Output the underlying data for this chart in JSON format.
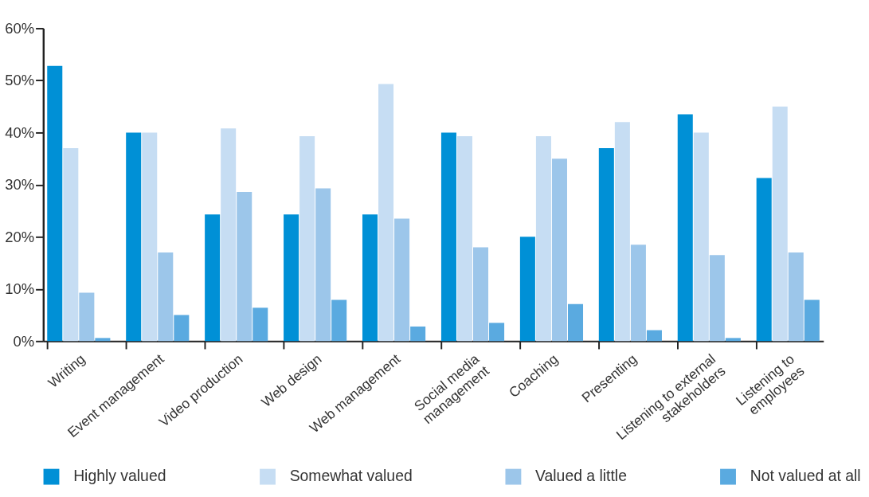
{
  "chart_data": {
    "type": "bar",
    "categories": [
      "Writing",
      "Event management",
      "Video production",
      "Web design",
      "Web management",
      "Social media\nmanagement",
      "Coaching",
      "Presenting",
      "Listening to external\nstakeholders",
      "Listening to\nemployees"
    ],
    "series": [
      {
        "name": "Highly valued",
        "color": "#0090d6",
        "values": [
          52.8,
          40,
          24.3,
          24.3,
          24.3,
          40,
          20,
          37,
          43.5,
          31.3
        ]
      },
      {
        "name": "Somewhat valued",
        "color": "#c6ddf3",
        "values": [
          37,
          40,
          40.8,
          39.3,
          49.3,
          39.3,
          39.3,
          42,
          40,
          45
        ]
      },
      {
        "name": "Valued a little",
        "color": "#9cc6ea",
        "values": [
          9.3,
          17,
          28.6,
          29.3,
          23.5,
          18,
          35,
          18.5,
          16.5,
          17
        ]
      },
      {
        "name": "Not valued at all",
        "color": "#5aaae0",
        "values": [
          0.6,
          5,
          6.4,
          7.9,
          2.8,
          3.5,
          7.1,
          2.1,
          0.6,
          7.9
        ]
      }
    ],
    "ylim": [
      0,
      60
    ],
    "yticks": [
      {
        "value": 0,
        "label": "0%"
      },
      {
        "value": 10,
        "label": "10%"
      },
      {
        "value": 20,
        "label": "20%"
      },
      {
        "value": 30,
        "label": "30%"
      },
      {
        "value": 40,
        "label": "40%"
      },
      {
        "value": 50,
        "label": "50%"
      },
      {
        "value": 60,
        "label": "60%"
      }
    ],
    "grid": false,
    "legend": "bottom"
  }
}
